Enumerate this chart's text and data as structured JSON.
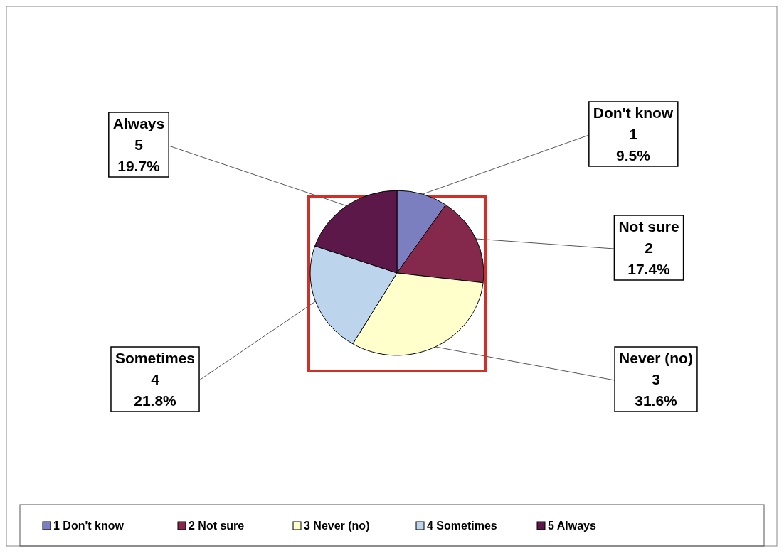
{
  "chart_data": {
    "type": "pie",
    "categories": [
      "1 Don't know",
      "2 Not sure",
      "3 Never (no)",
      "4 Sometimes",
      "5 Always"
    ],
    "values": [
      9.5,
      17.4,
      31.6,
      21.8,
      19.7
    ],
    "colors": [
      "#7b7fc0",
      "#84284c",
      "#ffffcc",
      "#bcd4ec",
      "#5c1848"
    ],
    "value_labels": [
      "Don't know\n1\n9.5%",
      "Not sure\n2\n17.4%",
      "Never (no)\n3\n31.6%",
      "Sometimes\n4\n21.8%",
      "Always\n5\n19.7%"
    ],
    "legend": "bottom"
  }
}
